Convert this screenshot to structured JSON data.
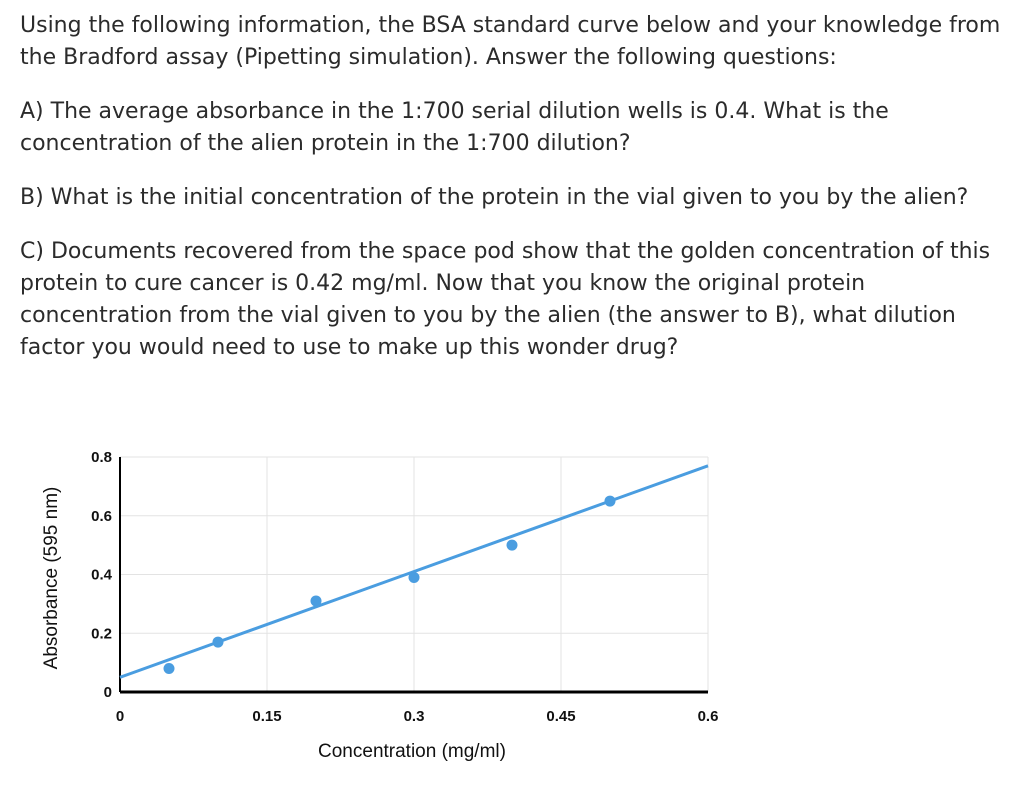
{
  "questions": {
    "intro": "Using the following information, the BSA standard curve below and your knowledge from the Bradford assay (Pipetting simulation). Answer the following questions:",
    "a": "A) The average absorbance in the 1:700 serial dilution wells is 0.4. What is the concentration of the alien protein in the 1:700 dilution?",
    "b": "B) What is the initial concentration of the protein in the vial given to you by the alien?",
    "c": "C) Documents recovered from the space pod show that the golden concentration of this protein to cure cancer is 0.42 mg/ml. Now that you know the original protein concentration from the vial given to you by the alien (the answer to B), what dilution factor you would need to use to make up this wonder drug?"
  },
  "chart_data": {
    "type": "scatter",
    "xlabel": "Concentration (mg/ml)",
    "ylabel": "Absorbance (595 nm)",
    "xlim": [
      0,
      0.6
    ],
    "ylim": [
      0,
      0.8
    ],
    "x_ticks": [
      0,
      0.15,
      0.3,
      0.45,
      0.6
    ],
    "x_tick_labels": [
      "0",
      "0.15",
      "0.3",
      "0.45",
      "0.6"
    ],
    "y_ticks": [
      0,
      0.2,
      0.4,
      0.6,
      0.8
    ],
    "y_tick_labels": [
      "0",
      "0.2",
      "0.4",
      "0.6",
      "0.8"
    ],
    "grid": true,
    "points": [
      {
        "x": 0.05,
        "y": 0.08
      },
      {
        "x": 0.1,
        "y": 0.17
      },
      {
        "x": 0.2,
        "y": 0.31
      },
      {
        "x": 0.3,
        "y": 0.39
      },
      {
        "x": 0.4,
        "y": 0.5
      },
      {
        "x": 0.5,
        "y": 0.65
      }
    ],
    "trendline": {
      "x1": 0,
      "y1": 0.05,
      "x2": 0.6,
      "y2": 0.77
    },
    "color": "#4a9de0"
  }
}
